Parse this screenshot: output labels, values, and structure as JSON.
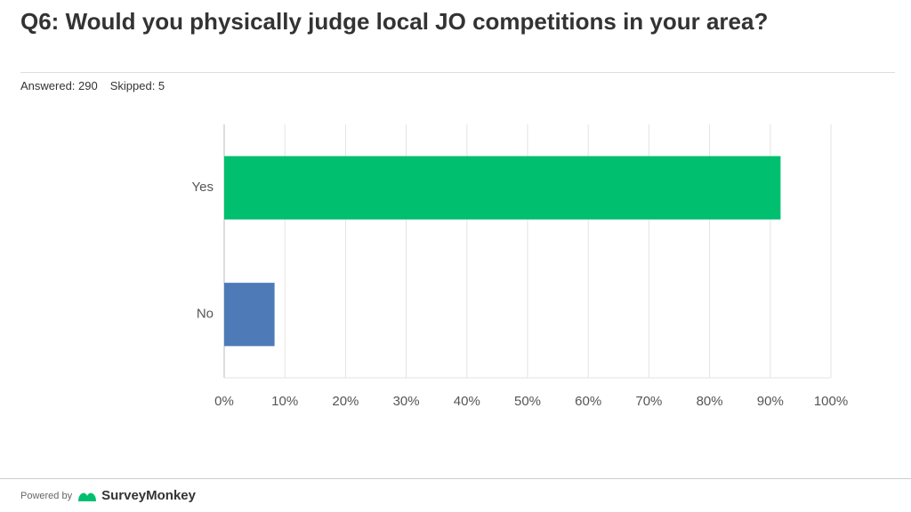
{
  "header": {
    "title": "Q6: Would you physically judge local JO competitions in your area?",
    "answered": "Answered: 290",
    "skipped": "Skipped: 5"
  },
  "chart_data": {
    "type": "bar",
    "orientation": "horizontal",
    "categories": [
      "Yes",
      "No"
    ],
    "values": [
      91.7,
      8.3
    ],
    "colors": [
      "#00bf6f",
      "#4f7ab8"
    ],
    "xlim": [
      0,
      100
    ],
    "xticks": [
      {
        "value": 0,
        "label": "0%"
      },
      {
        "value": 10,
        "label": "10%"
      },
      {
        "value": 20,
        "label": "20%"
      },
      {
        "value": 30,
        "label": "30%"
      },
      {
        "value": 40,
        "label": "40%"
      },
      {
        "value": 50,
        "label": "50%"
      },
      {
        "value": 60,
        "label": "60%"
      },
      {
        "value": 70,
        "label": "70%"
      },
      {
        "value": 80,
        "label": "80%"
      },
      {
        "value": 90,
        "label": "90%"
      },
      {
        "value": 100,
        "label": "100%"
      }
    ],
    "grid": true
  },
  "footer": {
    "powered_by": "Powered by",
    "brand": "SurveyMonkey"
  }
}
